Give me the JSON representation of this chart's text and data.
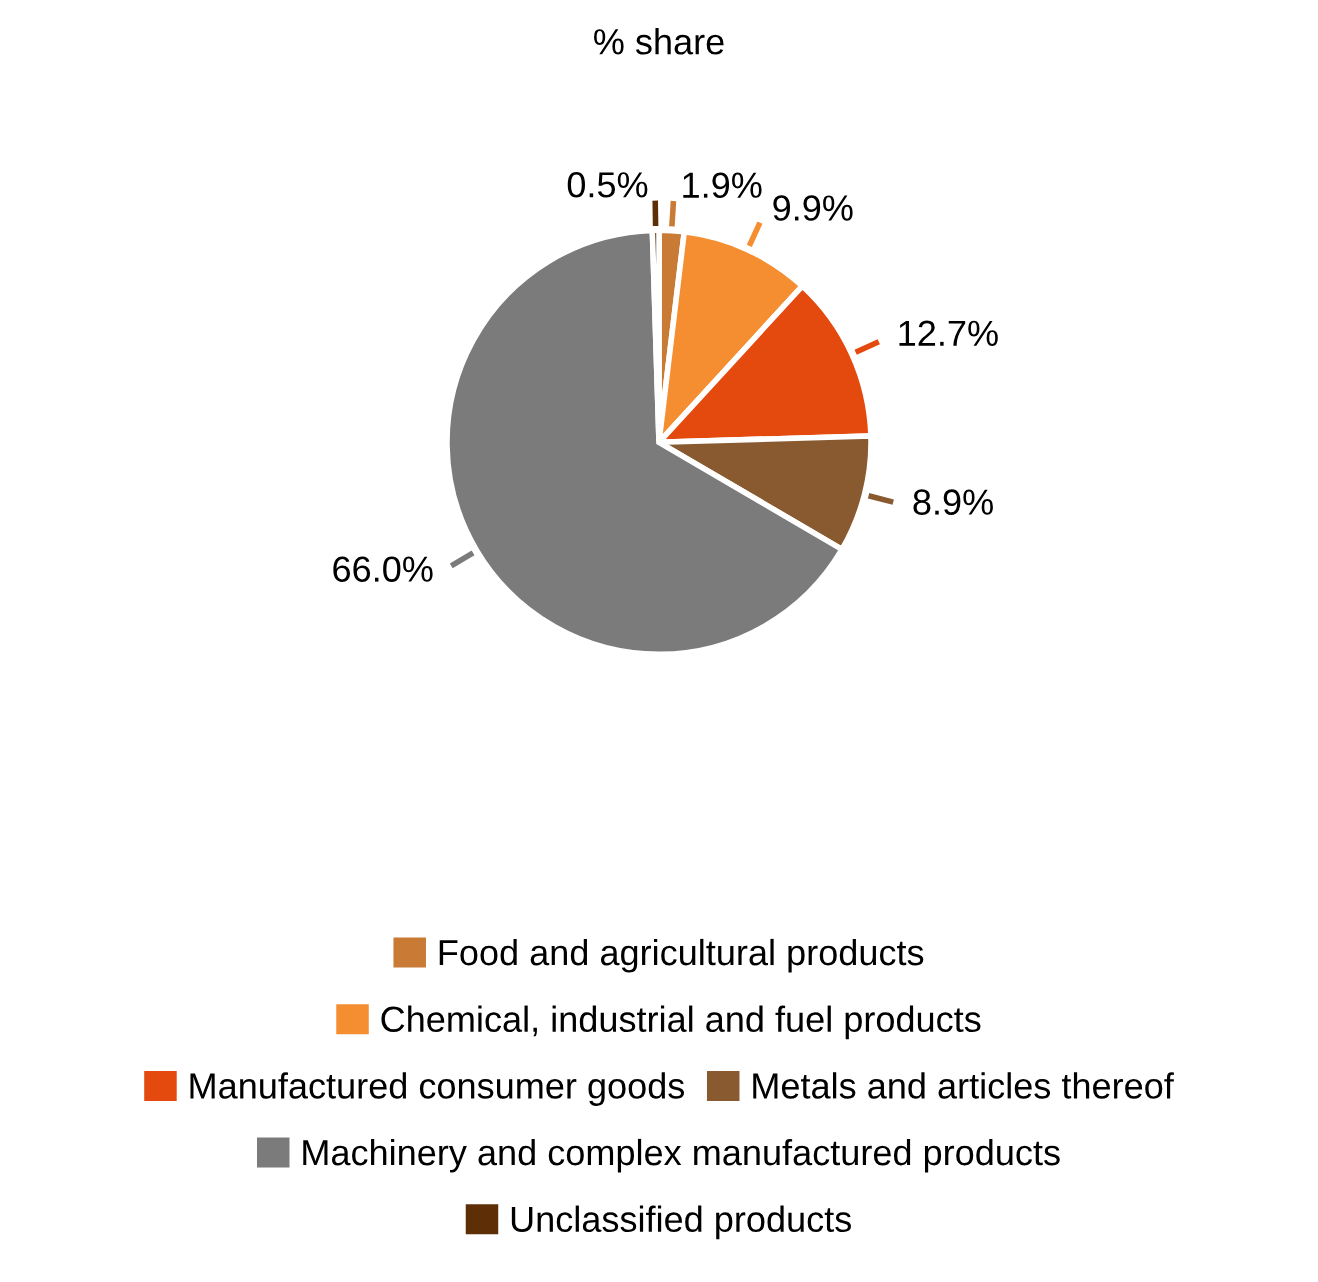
{
  "chart_data": {
    "type": "pie",
    "title": "% share",
    "categories": [
      "Food and agricultural products",
      "Chemical, industrial and fuel products",
      "Manufactured consumer goods",
      "Metals and articles thereof",
      "Machinery and complex manufactured products",
      "Unclassified products"
    ],
    "values": [
      1.9,
      9.9,
      12.7,
      8.9,
      66.0,
      0.5
    ],
    "colors": [
      "#c97a35",
      "#f58d31",
      "#e4490e",
      "#895a30",
      "#7b7b7b",
      "#5e2f06"
    ],
    "value_labels": [
      "1.9%",
      "9.9%",
      "12.7%",
      "8.9%",
      "66.0%",
      "0.5%"
    ],
    "legend": "bottom"
  }
}
